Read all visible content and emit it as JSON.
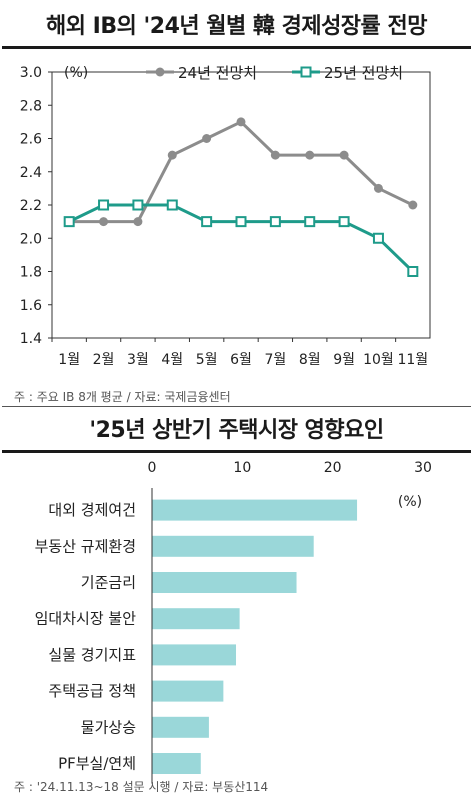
{
  "chart_data": [
    {
      "type": "line",
      "title": "해외 IB의 '24년 월별 韓 경제성장률 전망",
      "ylabel": "(%)",
      "categories": [
        "1월",
        "2월",
        "3월",
        "4월",
        "5월",
        "6월",
        "7월",
        "8월",
        "9월",
        "10월",
        "11월"
      ],
      "yticks": [
        "3.0",
        "2.8",
        "2.6",
        "2.4",
        "2.2",
        "2.0",
        "1.8",
        "1.6",
        "1.4"
      ],
      "ylim": [
        1.4,
        3.0
      ],
      "series": [
        {
          "name": "24년 전망치",
          "color": "#8c8c8c",
          "marker": "circle",
          "values": [
            2.1,
            2.1,
            2.1,
            2.5,
            2.6,
            2.7,
            2.5,
            2.5,
            2.5,
            2.3,
            2.2
          ]
        },
        {
          "name": "25년 전망치",
          "color": "#1e9b8a",
          "marker": "square",
          "values": [
            2.1,
            2.2,
            2.2,
            2.2,
            2.1,
            2.1,
            2.1,
            2.1,
            2.1,
            2.0,
            1.8
          ]
        }
      ],
      "legend_position": "top",
      "note": "주 : 주요 IB 8개 평균 / 자료: 국제금융센터"
    },
    {
      "type": "bar",
      "orientation": "horizontal",
      "title": "'25년 상반기 주택시장 영향요인",
      "unit": "(%)",
      "xticks": [
        "0",
        "10",
        "20",
        "30"
      ],
      "xlim": [
        0,
        30
      ],
      "color": "#9ad7d9",
      "categories": [
        "대외 경제여건",
        "부동산 규제환경",
        "기준금리",
        "임대차시장 불안",
        "실물 경기지표",
        "주택공급 정책",
        "물가상승",
        "PF부실/연체"
      ],
      "values": [
        22.7,
        17.9,
        16.0,
        9.7,
        9.3,
        7.9,
        6.3,
        5.4
      ],
      "note": "주 : '24.11.13~18 설문 시행 / 자료: 부동산114"
    }
  ]
}
